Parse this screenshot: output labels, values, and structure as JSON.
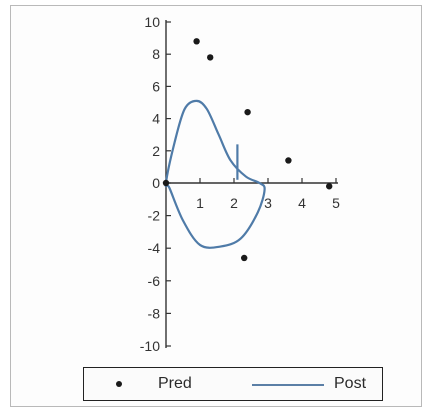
{
  "chart_data": {
    "type": "scatter",
    "xlim": [
      0,
      5
    ],
    "ylim": [
      -10,
      10
    ],
    "x_ticks": [
      1,
      2,
      3,
      4,
      5
    ],
    "y_ticks": [
      10,
      8,
      6,
      4,
      2,
      0,
      -2,
      -4,
      -6,
      -8,
      -10
    ],
    "grid": false,
    "legend_position": "bottom",
    "series": [
      {
        "name": "Pred",
        "kind": "points",
        "color": "#1a1a1a",
        "points": [
          {
            "x": 0.9,
            "y": 8.8
          },
          {
            "x": 1.3,
            "y": 7.8
          },
          {
            "x": 2.4,
            "y": 4.4
          },
          {
            "x": 3.6,
            "y": 1.4
          },
          {
            "x": 4.8,
            "y": -0.2
          },
          {
            "x": 2.3,
            "y": -4.6
          },
          {
            "x": 0.0,
            "y": 0.0
          }
        ]
      },
      {
        "name": "Post",
        "kind": "line",
        "color": "#4f7ba8",
        "points": [
          {
            "x": 0.0,
            "y": 0.0
          },
          {
            "x": 0.25,
            "y": 2.5
          },
          {
            "x": 0.55,
            "y": 4.6
          },
          {
            "x": 0.9,
            "y": 5.1
          },
          {
            "x": 1.2,
            "y": 4.6
          },
          {
            "x": 1.55,
            "y": 3.0
          },
          {
            "x": 1.9,
            "y": 1.4
          },
          {
            "x": 2.35,
            "y": 0.4
          },
          {
            "x": 2.75,
            "y": 0.0
          },
          {
            "x": 2.9,
            "y": -0.4
          },
          {
            "x": 2.7,
            "y": -1.8
          },
          {
            "x": 2.2,
            "y": -3.4
          },
          {
            "x": 1.6,
            "y": -3.9
          },
          {
            "x": 1.0,
            "y": -3.8
          },
          {
            "x": 0.5,
            "y": -2.3
          },
          {
            "x": 0.1,
            "y": -0.3
          }
        ],
        "spike": [
          {
            "x": 2.1,
            "y": 0.2
          },
          {
            "x": 2.1,
            "y": 2.4
          }
        ]
      }
    ]
  },
  "legend": {
    "pred_label": "Pred",
    "post_label": "Post"
  }
}
